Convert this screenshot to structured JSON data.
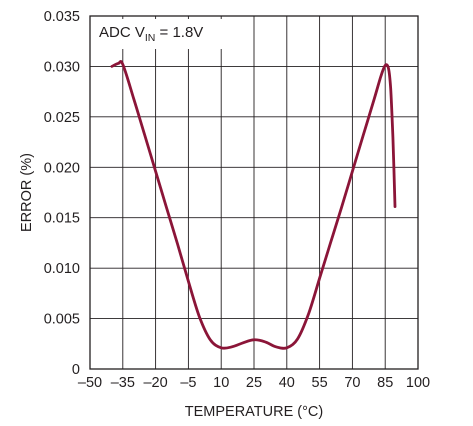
{
  "chart_data": {
    "type": "line",
    "title": "",
    "xlabel": "TEMPERATURE (°C)",
    "ylabel": "ERROR (%)",
    "xlim": [
      -50,
      100
    ],
    "ylim": [
      0,
      0.035
    ],
    "x_ticks": [
      -50,
      -35,
      -20,
      -5,
      10,
      25,
      40,
      55,
      70,
      85,
      100
    ],
    "x_tick_labels": [
      "–50",
      "–35",
      "–20",
      "–5",
      "10",
      "25",
      "40",
      "55",
      "70",
      "85",
      "100"
    ],
    "y_ticks": [
      0,
      0.005,
      0.01,
      0.015,
      0.02,
      0.025,
      0.03,
      0.035
    ],
    "y_tick_labels": [
      "0",
      "0.005",
      "0.010",
      "0.015",
      "0.020",
      "0.025",
      "0.030",
      "0.035"
    ],
    "grid": true,
    "annotation": {
      "main": "ADC V",
      "sub": "IN",
      "rest": " = 1.8V"
    },
    "series": [
      {
        "color": "#8b1538",
        "x": [
          -40,
          -37,
          -35,
          -30,
          -25,
          -20,
          -15,
          -10,
          -5,
          0,
          5,
          10,
          15,
          20,
          25,
          30,
          35,
          40,
          45,
          50,
          55,
          60,
          65,
          70,
          75,
          80,
          83,
          85,
          86.5,
          87.5,
          88.5,
          89.5
        ],
        "y": [
          0.03,
          0.0303,
          0.0302,
          0.0268,
          0.0232,
          0.0196,
          0.016,
          0.0124,
          0.0087,
          0.0052,
          0.0029,
          0.0021,
          0.0022,
          0.0026,
          0.0029,
          0.0027,
          0.0022,
          0.0021,
          0.003,
          0.0055,
          0.009,
          0.0125,
          0.016,
          0.0196,
          0.0232,
          0.0268,
          0.029,
          0.0301,
          0.0298,
          0.0278,
          0.023,
          0.0161
        ]
      }
    ]
  }
}
